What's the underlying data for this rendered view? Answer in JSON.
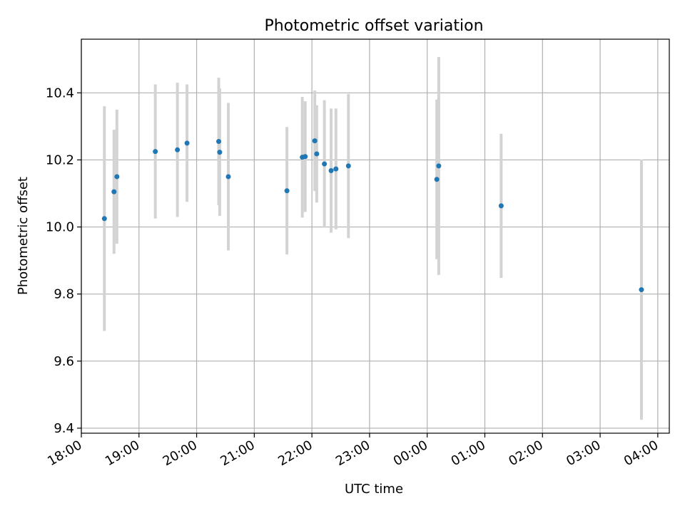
{
  "chart_data": {
    "type": "scatter",
    "title": "Photometric offset variation",
    "xlabel": "UTC time",
    "ylabel": "Photometric offset",
    "x_axis_type": "time",
    "xlim": [
      "18:00",
      "04:12"
    ],
    "ylim": [
      9.385,
      10.56
    ],
    "grid": true,
    "x_tick_labels": [
      "18:00",
      "19:00",
      "20:00",
      "21:00",
      "22:00",
      "23:00",
      "00:00",
      "01:00",
      "02:00",
      "03:00",
      "04:00"
    ],
    "y_ticks": [
      9.4,
      9.6,
      9.8,
      10.0,
      10.2,
      10.4
    ],
    "y_tick_labels": [
      "9.4",
      "9.6",
      "9.8",
      "10.0",
      "10.2",
      "10.4"
    ],
    "point_color": "#1f77b4",
    "errorbar_color": "#d3d3d3",
    "points": [
      {
        "x": "18:24",
        "y": 10.025,
        "err": 0.335
      },
      {
        "x": "18:34",
        "y": 10.105,
        "err": 0.185
      },
      {
        "x": "18:37",
        "y": 10.15,
        "err": 0.2
      },
      {
        "x": "19:17",
        "y": 10.225,
        "err": 0.2
      },
      {
        "x": "19:40",
        "y": 10.23,
        "err": 0.2
      },
      {
        "x": "19:50",
        "y": 10.25,
        "err": 0.175
      },
      {
        "x": "20:23",
        "y": 10.255,
        "err": 0.19
      },
      {
        "x": "20:24",
        "y": 10.223,
        "err": 0.19
      },
      {
        "x": "20:33",
        "y": 10.15,
        "err": 0.22
      },
      {
        "x": "21:34",
        "y": 10.108,
        "err": 0.19
      },
      {
        "x": "21:50",
        "y": 10.208,
        "err": 0.18
      },
      {
        "x": "21:53",
        "y": 10.21,
        "err": 0.165
      },
      {
        "x": "22:03",
        "y": 10.257,
        "err": 0.15
      },
      {
        "x": "22:05",
        "y": 10.218,
        "err": 0.145
      },
      {
        "x": "22:13",
        "y": 10.188,
        "err": 0.19
      },
      {
        "x": "22:20",
        "y": 10.168,
        "err": 0.185
      },
      {
        "x": "22:25",
        "y": 10.173,
        "err": 0.18
      },
      {
        "x": "22:38",
        "y": 10.182,
        "err": 0.215
      },
      {
        "x": "00:10",
        "y": 10.142,
        "err": 0.238
      },
      {
        "x": "00:12",
        "y": 10.182,
        "err": 0.325
      },
      {
        "x": "01:17",
        "y": 10.063,
        "err": 0.215
      },
      {
        "x": "03:43",
        "y": 9.813,
        "err": 0.388
      }
    ]
  }
}
